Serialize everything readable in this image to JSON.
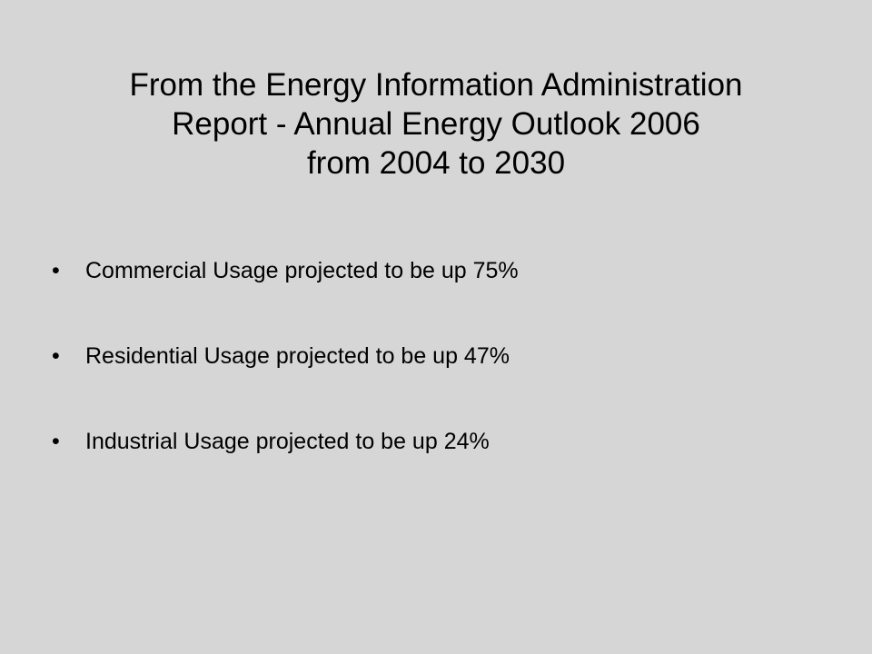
{
  "slide": {
    "title_lines": [
      "From the Energy Information Administration",
      "Report - Annual Energy Outlook 2006",
      "from 2004 to 2030"
    ],
    "bullet_marker": "•",
    "bullets": [
      "Commercial Usage projected to be up 75%",
      "Residential Usage projected to be up 47%",
      "Industrial Usage projected to be up 24%"
    ]
  }
}
